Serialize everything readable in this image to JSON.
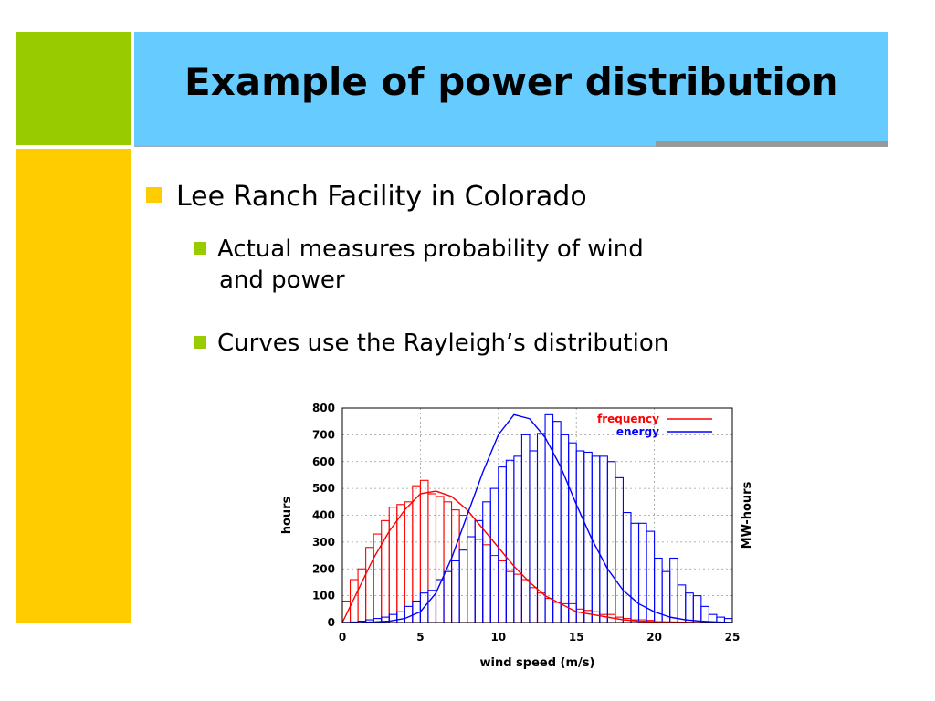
{
  "slide": {
    "title": "Example of power distribution",
    "bullets": [
      {
        "text": "Lee Ranch Facility in Colorado"
      },
      {
        "line1": "Actual measures probability of wind",
        "line2": "and power"
      },
      {
        "text": "Curves use the Rayleigh’s distribution"
      }
    ]
  },
  "colors": {
    "green": "#99cc00",
    "blue": "#66ccff",
    "yellow": "#ffcc00",
    "frequency": "#ff0000",
    "energy": "#0000ff"
  },
  "chart_data": {
    "type": "bar",
    "xlabel": "wind speed (m/s)",
    "ylabel": "hours",
    "y2label": "MW-hours",
    "xlim": [
      0,
      25
    ],
    "ylim": [
      0,
      800
    ],
    "xticks": [
      0,
      5,
      10,
      15,
      20,
      25
    ],
    "yticks": [
      0,
      100,
      200,
      300,
      400,
      500,
      600,
      700,
      800
    ],
    "grid": true,
    "legend_position": "top-right",
    "bin_width": 0.5,
    "series": [
      {
        "name": "frequency",
        "kind": "histogram",
        "x_start": 0.0,
        "values": [
          80,
          160,
          200,
          280,
          330,
          380,
          430,
          440,
          450,
          510,
          530,
          480,
          470,
          450,
          420,
          400,
          390,
          310,
          290,
          250,
          230,
          190,
          180,
          160,
          130,
          110,
          90,
          75,
          70,
          70,
          50,
          45,
          40,
          30,
          30,
          20,
          15,
          10,
          10,
          8
        ]
      },
      {
        "name": "energy",
        "kind": "histogram",
        "x_start": 0.5,
        "values": [
          2,
          5,
          10,
          15,
          20,
          30,
          40,
          60,
          80,
          110,
          120,
          160,
          190,
          230,
          270,
          320,
          380,
          450,
          500,
          580,
          605,
          620,
          700,
          640,
          705,
          775,
          750,
          700,
          670,
          640,
          635,
          620,
          620,
          600,
          540,
          410,
          370,
          370,
          340,
          240,
          190,
          240,
          140,
          110,
          100,
          60,
          30,
          20,
          15,
          10,
          5,
          40,
          45
        ]
      },
      {
        "name": "frequency",
        "kind": "curve",
        "x": [
          0,
          1,
          2,
          3,
          4,
          5,
          6,
          7,
          8,
          9,
          10,
          11,
          12,
          13,
          14,
          15,
          16,
          17,
          18,
          19,
          20,
          21,
          22,
          23,
          24
        ],
        "values": [
          0,
          120,
          240,
          340,
          420,
          480,
          490,
          470,
          420,
          350,
          280,
          210,
          150,
          100,
          70,
          40,
          30,
          20,
          10,
          5,
          3,
          2,
          1,
          0,
          0
        ]
      },
      {
        "name": "energy",
        "kind": "curve",
        "x": [
          0,
          1,
          2,
          3,
          4,
          5,
          6,
          7,
          8,
          9,
          10,
          11,
          12,
          13,
          14,
          15,
          16,
          17,
          18,
          19,
          20,
          21,
          22,
          23,
          24,
          25
        ],
        "values": [
          0,
          0,
          2,
          5,
          15,
          40,
          110,
          240,
          400,
          560,
          700,
          775,
          760,
          690,
          580,
          440,
          310,
          200,
          120,
          70,
          40,
          20,
          10,
          5,
          2,
          0
        ]
      }
    ]
  }
}
